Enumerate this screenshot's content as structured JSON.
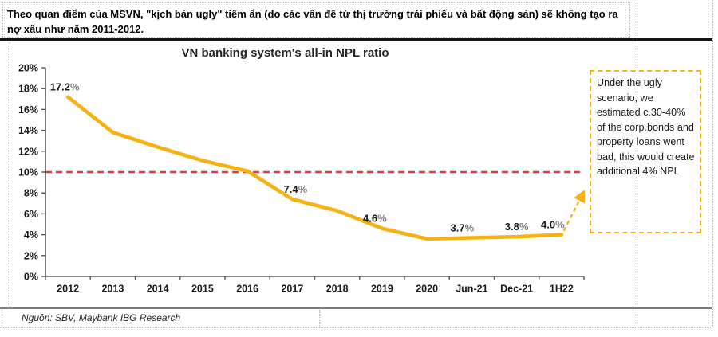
{
  "header": {
    "text": "Theo quan điểm của MSVN, \"kịch bản ugly\" tiềm ẩn (do các vấn đề từ thị trường trái phiếu và bất động sản) sẽ không tạo ra nợ xấu như năm 2011-2012."
  },
  "chart_data": {
    "type": "line",
    "title": "VN banking system's all-in NPL ratio",
    "categories": [
      "2012",
      "2013",
      "2014",
      "2015",
      "2016",
      "2017",
      "2018",
      "2019",
      "2020",
      "Jun-21",
      "Dec-21",
      "1H22"
    ],
    "series": [
      {
        "name": "All-in NPL ratio",
        "values": [
          17.2,
          13.8,
          12.4,
          11.1,
          10.1,
          7.4,
          6.3,
          4.6,
          3.6,
          3.7,
          3.8,
          4.0
        ]
      }
    ],
    "point_labels": [
      "17.2%",
      null,
      null,
      null,
      null,
      "7.4%",
      null,
      "4.6%",
      null,
      "3.7%",
      "3.8%",
      "4.0%"
    ],
    "y_ticks": [
      "0%",
      "2%",
      "4%",
      "6%",
      "8%",
      "10%",
      "12%",
      "14%",
      "16%",
      "18%",
      "20%"
    ],
    "ylim": [
      0,
      20
    ],
    "xlabel": "",
    "ylabel": "",
    "grid": false,
    "legend": "none",
    "line_color": "#F6B213",
    "reference_line": {
      "value": 10,
      "style": "dashed",
      "color": "#E03B3B"
    },
    "axis_color": "#595959"
  },
  "annotation": {
    "text": "Under the ugly scenario, we estimated c.30-40% of the corp.bonds and property loans went bad, this would create additional 4% NPL"
  },
  "footer": {
    "source": "Nguồn: SBV, Maybank IBG Research"
  }
}
